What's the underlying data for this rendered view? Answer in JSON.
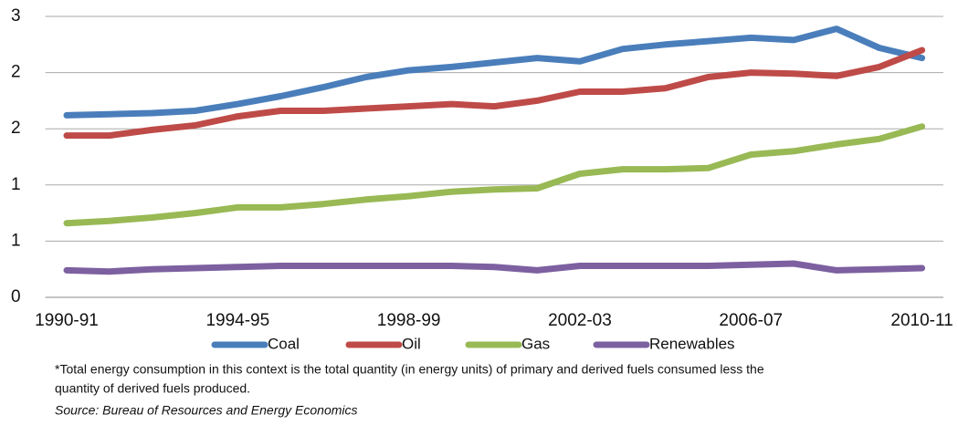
{
  "chart_data": {
    "type": "line",
    "categories": [
      "1990-91",
      null,
      null,
      null,
      "1994-95",
      null,
      null,
      null,
      "1998-99",
      null,
      null,
      null,
      "2002-03",
      null,
      null,
      null,
      "2006-07",
      null,
      null,
      null,
      "2010-11"
    ],
    "series": [
      {
        "name": "Coal",
        "color": "#4a7ebb",
        "values": [
          1.62,
          1.63,
          1.64,
          1.66,
          1.72,
          1.79,
          1.87,
          1.96,
          2.02,
          2.05,
          2.09,
          2.13,
          2.1,
          2.21,
          2.25,
          2.28,
          2.31,
          2.29,
          2.39,
          2.22,
          2.13
        ]
      },
      {
        "name": "Oil",
        "color": "#be4b48",
        "values": [
          1.44,
          1.44,
          1.49,
          1.53,
          1.61,
          1.66,
          1.66,
          1.68,
          1.7,
          1.72,
          1.7,
          1.75,
          1.83,
          1.83,
          1.86,
          1.96,
          2.0,
          1.99,
          1.97,
          2.05,
          2.2
        ]
      },
      {
        "name": "Gas",
        "color": "#98b954",
        "values": [
          0.66,
          0.68,
          0.71,
          0.75,
          0.8,
          0.8,
          0.83,
          0.87,
          0.9,
          0.94,
          0.96,
          0.97,
          1.1,
          1.14,
          1.14,
          1.15,
          1.27,
          1.3,
          1.36,
          1.41,
          1.52
        ]
      },
      {
        "name": "Renewables",
        "color": "#7d60a0",
        "values": [
          0.24,
          0.23,
          0.25,
          0.26,
          0.27,
          0.28,
          0.28,
          0.28,
          0.28,
          0.28,
          0.27,
          0.24,
          0.28,
          0.28,
          0.28,
          0.28,
          0.29,
          0.3,
          0.24,
          0.25,
          0.26
        ]
      }
    ],
    "ylim": [
      0,
      2.5
    ],
    "yticks": [
      0,
      {
        "value": 0.5,
        "label": "1"
      },
      1,
      {
        "value": 1.5,
        "label": "2"
      },
      2,
      {
        "value": 2.5,
        "label": "3"
      }
    ],
    "grid": true,
    "legend": "bottom",
    "footnote": "*Total energy consumption in this context is the total quantity (in energy units) of primary and derived fuels consumed less the",
    "footnote_line2": "quantity of derived fuels produced.",
    "source": "Source: Bureau of Resources and Energy Economics"
  }
}
